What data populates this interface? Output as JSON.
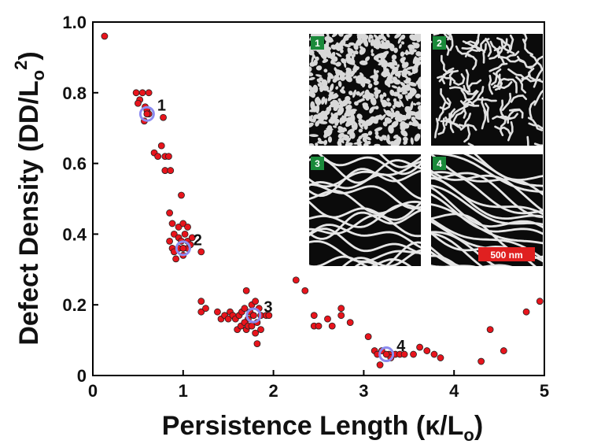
{
  "chart_data": {
    "type": "scatter",
    "xlabel_main": "Persistence Length (κ/L",
    "xlabel_sub": "o",
    "xlabel_tail": ")",
    "ylabel_main": "Defect Density (DD/L",
    "ylabel_sub": "o",
    "ylabel_sup": "2",
    "ylabel_tail": ")",
    "xlim": [
      0,
      5
    ],
    "ylim": [
      0,
      1.0
    ],
    "x_ticks": [
      "0",
      "1",
      "2",
      "3",
      "4",
      "5"
    ],
    "y_ticks": [
      "0",
      "0.2",
      "0.4",
      "0.6",
      "0.8",
      "1.0"
    ],
    "marker_color": "#e8141c",
    "highlight_color": "#8c8cf0",
    "points": [
      [
        0.13,
        0.96
      ],
      [
        0.48,
        0.8
      ],
      [
        0.52,
        0.78
      ],
      [
        0.55,
        0.8
      ],
      [
        0.58,
        0.76
      ],
      [
        0.62,
        0.8
      ],
      [
        0.5,
        0.77
      ],
      [
        0.6,
        0.75
      ],
      [
        0.57,
        0.72
      ],
      [
        0.62,
        0.74
      ],
      [
        0.78,
        0.73
      ],
      [
        0.68,
        0.63
      ],
      [
        0.72,
        0.62
      ],
      [
        0.76,
        0.65
      ],
      [
        0.8,
        0.62
      ],
      [
        0.84,
        0.62
      ],
      [
        0.8,
        0.58
      ],
      [
        0.86,
        0.58
      ],
      [
        0.98,
        0.51
      ],
      [
        0.85,
        0.46
      ],
      [
        0.88,
        0.43
      ],
      [
        0.95,
        0.42
      ],
      [
        1.0,
        0.43
      ],
      [
        0.9,
        0.4
      ],
      [
        0.95,
        0.39
      ],
      [
        1.02,
        0.4
      ],
      [
        1.05,
        0.42
      ],
      [
        0.85,
        0.38
      ],
      [
        0.88,
        0.36
      ],
      [
        0.98,
        0.38
      ],
      [
        1.05,
        0.38
      ],
      [
        1.1,
        0.39
      ],
      [
        0.9,
        0.35
      ],
      [
        0.95,
        0.36
      ],
      [
        1.0,
        0.36
      ],
      [
        1.05,
        0.36
      ],
      [
        0.92,
        0.33
      ],
      [
        1.0,
        0.34
      ],
      [
        1.08,
        0.37
      ],
      [
        1.2,
        0.35
      ],
      [
        1.2,
        0.21
      ],
      [
        1.2,
        0.18
      ],
      [
        1.25,
        0.19
      ],
      [
        1.38,
        0.18
      ],
      [
        1.42,
        0.16
      ],
      [
        1.46,
        0.17
      ],
      [
        1.5,
        0.16
      ],
      [
        1.52,
        0.18
      ],
      [
        1.55,
        0.17
      ],
      [
        1.58,
        0.16
      ],
      [
        1.62,
        0.17
      ],
      [
        1.65,
        0.18
      ],
      [
        1.68,
        0.19
      ],
      [
        1.7,
        0.24
      ],
      [
        1.72,
        0.16
      ],
      [
        1.74,
        0.18
      ],
      [
        1.76,
        0.2
      ],
      [
        1.78,
        0.17
      ],
      [
        1.8,
        0.21
      ],
      [
        1.82,
        0.15
      ],
      [
        1.84,
        0.19
      ],
      [
        1.86,
        0.17
      ],
      [
        1.6,
        0.13
      ],
      [
        1.64,
        0.14
      ],
      [
        1.68,
        0.15
      ],
      [
        1.7,
        0.13
      ],
      [
        1.72,
        0.14
      ],
      [
        1.76,
        0.14
      ],
      [
        1.8,
        0.12
      ],
      [
        1.86,
        0.13
      ],
      [
        1.92,
        0.17
      ],
      [
        1.95,
        0.17
      ],
      [
        1.82,
        0.09
      ],
      [
        2.25,
        0.27
      ],
      [
        2.35,
        0.24
      ],
      [
        2.45,
        0.17
      ],
      [
        2.45,
        0.14
      ],
      [
        2.5,
        0.14
      ],
      [
        2.6,
        0.16
      ],
      [
        2.65,
        0.14
      ],
      [
        2.75,
        0.17
      ],
      [
        2.75,
        0.19
      ],
      [
        2.85,
        0.15
      ],
      [
        3.05,
        0.11
      ],
      [
        3.12,
        0.07
      ],
      [
        3.15,
        0.06
      ],
      [
        3.2,
        0.07
      ],
      [
        3.28,
        0.06
      ],
      [
        3.3,
        0.05
      ],
      [
        3.35,
        0.06
      ],
      [
        3.4,
        0.06
      ],
      [
        3.45,
        0.06
      ],
      [
        3.55,
        0.06
      ],
      [
        3.62,
        0.08
      ],
      [
        3.7,
        0.07
      ],
      [
        3.78,
        0.06
      ],
      [
        3.85,
        0.05
      ],
      [
        3.18,
        0.03
      ],
      [
        4.3,
        0.04
      ],
      [
        4.4,
        0.13
      ],
      [
        4.55,
        0.07
      ],
      [
        4.8,
        0.18
      ],
      [
        4.95,
        0.21
      ]
    ],
    "highlights": [
      {
        "label": "1",
        "x": 0.6,
        "y": 0.74
      },
      {
        "label": "2",
        "x": 1.0,
        "y": 0.36
      },
      {
        "label": "3",
        "x": 1.78,
        "y": 0.17
      },
      {
        "label": "4",
        "x": 3.25,
        "y": 0.06
      }
    ],
    "insets": [
      {
        "label": "1",
        "texture": "dots"
      },
      {
        "label": "2",
        "texture": "worms"
      },
      {
        "label": "3",
        "texture": "stripes"
      },
      {
        "label": "4",
        "texture": "stripes-long"
      }
    ],
    "inset_badge_color": "#1a8a3a",
    "scale_bar_label": "500 nm",
    "scale_bar_color": "#e02020"
  }
}
